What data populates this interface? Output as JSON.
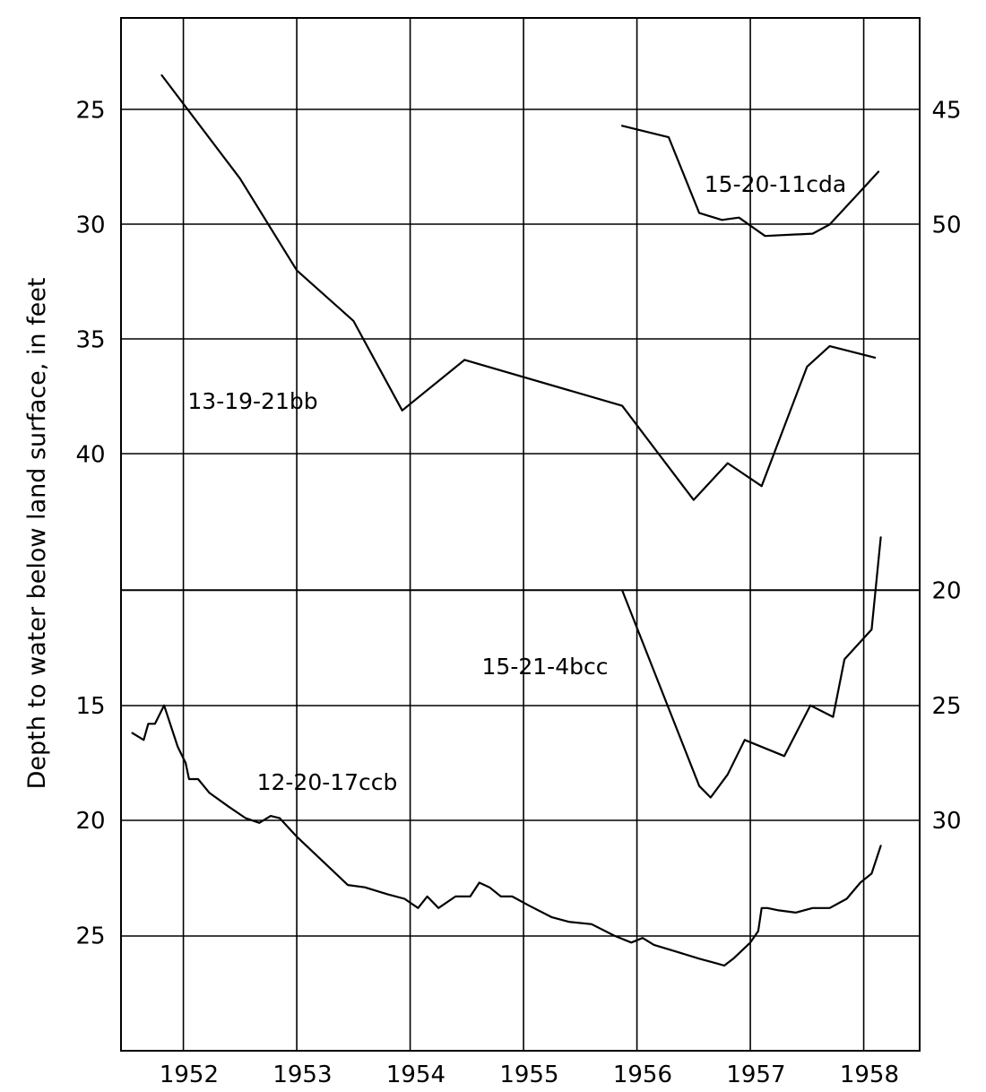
{
  "chart_data": {
    "type": "line",
    "title": "",
    "xlabel": "",
    "ylabel": "Depth to water below land surface, in feet",
    "x_unit": "year",
    "xlim": [
      1951.5,
      1958.5
    ],
    "x_ticks": [
      "1952",
      "1953",
      "1954",
      "1955",
      "1956",
      "1957",
      "1958"
    ],
    "y_inverted": true,
    "grid": true,
    "panels": [
      {
        "name": "upper",
        "left_axis": {
          "ylim": [
            21,
            46
          ],
          "ticks": [
            "25",
            "30",
            "35",
            "40"
          ]
        },
        "right_axis": {
          "ylim": [
            41,
            66
          ],
          "ticks": [
            "45",
            "50"
          ]
        }
      },
      {
        "name": "lower",
        "left_axis": {
          "ylim": [
            5,
            30
          ],
          "ticks": [
            "15",
            "20",
            "25"
          ]
        },
        "right_axis": {
          "ylim": [
            15,
            40
          ],
          "ticks": [
            "20",
            "25",
            "30"
          ]
        }
      }
    ],
    "series": [
      {
        "name": "13-19-21bb",
        "panel": "upper",
        "axis": "left",
        "points": [
          [
            1951.86,
            23.5
          ],
          [
            1952.55,
            28.0
          ],
          [
            1953.05,
            32.0
          ],
          [
            1953.55,
            34.2
          ],
          [
            1953.98,
            38.1
          ],
          [
            1954.53,
            35.9
          ],
          [
            1955.92,
            37.9
          ],
          [
            1956.55,
            42.0
          ],
          [
            1956.85,
            40.4
          ],
          [
            1957.15,
            41.4
          ],
          [
            1957.55,
            36.2
          ],
          [
            1957.75,
            35.3
          ],
          [
            1958.15,
            35.8
          ]
        ]
      },
      {
        "name": "15-20-11cda",
        "panel": "upper",
        "axis": "right",
        "points": [
          [
            1955.92,
            45.7
          ],
          [
            1956.33,
            46.2
          ],
          [
            1956.6,
            49.5
          ],
          [
            1956.8,
            49.8
          ],
          [
            1956.95,
            49.7
          ],
          [
            1957.18,
            50.5
          ],
          [
            1957.6,
            50.4
          ],
          [
            1957.75,
            50.0
          ],
          [
            1958.05,
            48.4
          ],
          [
            1958.18,
            47.7
          ]
        ]
      },
      {
        "name": "15-21-4bcc",
        "panel": "lower",
        "axis": "right",
        "points": [
          [
            1955.92,
            20.0
          ],
          [
            1956.6,
            28.5
          ],
          [
            1956.7,
            29.0
          ],
          [
            1956.85,
            28.0
          ],
          [
            1957.0,
            26.5
          ],
          [
            1957.35,
            27.2
          ],
          [
            1957.58,
            25.0
          ],
          [
            1957.78,
            25.5
          ],
          [
            1957.88,
            23.0
          ],
          [
            1958.12,
            21.7
          ],
          [
            1958.2,
            17.7
          ]
        ]
      },
      {
        "name": "12-20-17ccb",
        "panel": "lower",
        "axis": "left",
        "points": [
          [
            1951.6,
            16.2
          ],
          [
            1951.7,
            16.5
          ],
          [
            1951.74,
            15.8
          ],
          [
            1951.8,
            15.8
          ],
          [
            1951.88,
            15.0
          ],
          [
            1952.0,
            16.8
          ],
          [
            1952.07,
            17.5
          ],
          [
            1952.1,
            18.2
          ],
          [
            1952.18,
            18.2
          ],
          [
            1952.28,
            18.8
          ],
          [
            1952.45,
            19.4
          ],
          [
            1952.6,
            19.9
          ],
          [
            1952.72,
            20.1
          ],
          [
            1952.82,
            19.8
          ],
          [
            1952.9,
            19.9
          ],
          [
            1953.05,
            20.7
          ],
          [
            1953.2,
            21.4
          ],
          [
            1953.35,
            22.1
          ],
          [
            1953.5,
            22.8
          ],
          [
            1953.65,
            22.9
          ],
          [
            1953.85,
            23.2
          ],
          [
            1954.0,
            23.4
          ],
          [
            1954.12,
            23.8
          ],
          [
            1954.2,
            23.3
          ],
          [
            1954.3,
            23.8
          ],
          [
            1954.45,
            23.3
          ],
          [
            1954.58,
            23.3
          ],
          [
            1954.66,
            22.7
          ],
          [
            1954.75,
            22.9
          ],
          [
            1954.85,
            23.3
          ],
          [
            1954.95,
            23.3
          ],
          [
            1955.1,
            23.7
          ],
          [
            1955.3,
            24.2
          ],
          [
            1955.45,
            24.4
          ],
          [
            1955.65,
            24.5
          ],
          [
            1955.85,
            25.0
          ],
          [
            1956.0,
            25.3
          ],
          [
            1956.1,
            25.1
          ],
          [
            1956.2,
            25.4
          ],
          [
            1956.4,
            25.7
          ],
          [
            1956.6,
            26.0
          ],
          [
            1956.75,
            26.2
          ],
          [
            1956.82,
            26.3
          ],
          [
            1956.9,
            26.0
          ],
          [
            1957.05,
            25.3
          ],
          [
            1957.12,
            24.8
          ],
          [
            1957.15,
            23.8
          ],
          [
            1957.2,
            23.8
          ],
          [
            1957.3,
            23.9
          ],
          [
            1957.45,
            24.0
          ],
          [
            1957.6,
            23.8
          ],
          [
            1957.75,
            23.8
          ],
          [
            1957.9,
            23.4
          ],
          [
            1958.02,
            22.7
          ],
          [
            1958.12,
            22.3
          ],
          [
            1958.2,
            21.1
          ]
        ]
      }
    ],
    "annotations": [
      {
        "text": "13-19-21bb",
        "series": "13-19-21bb"
      },
      {
        "text": "15-20-11cda",
        "series": "15-20-11cda"
      },
      {
        "text": "15-21-4bcc",
        "series": "15-21-4bcc"
      },
      {
        "text": "12-20-17ccb",
        "series": "12-20-17ccb"
      }
    ]
  }
}
